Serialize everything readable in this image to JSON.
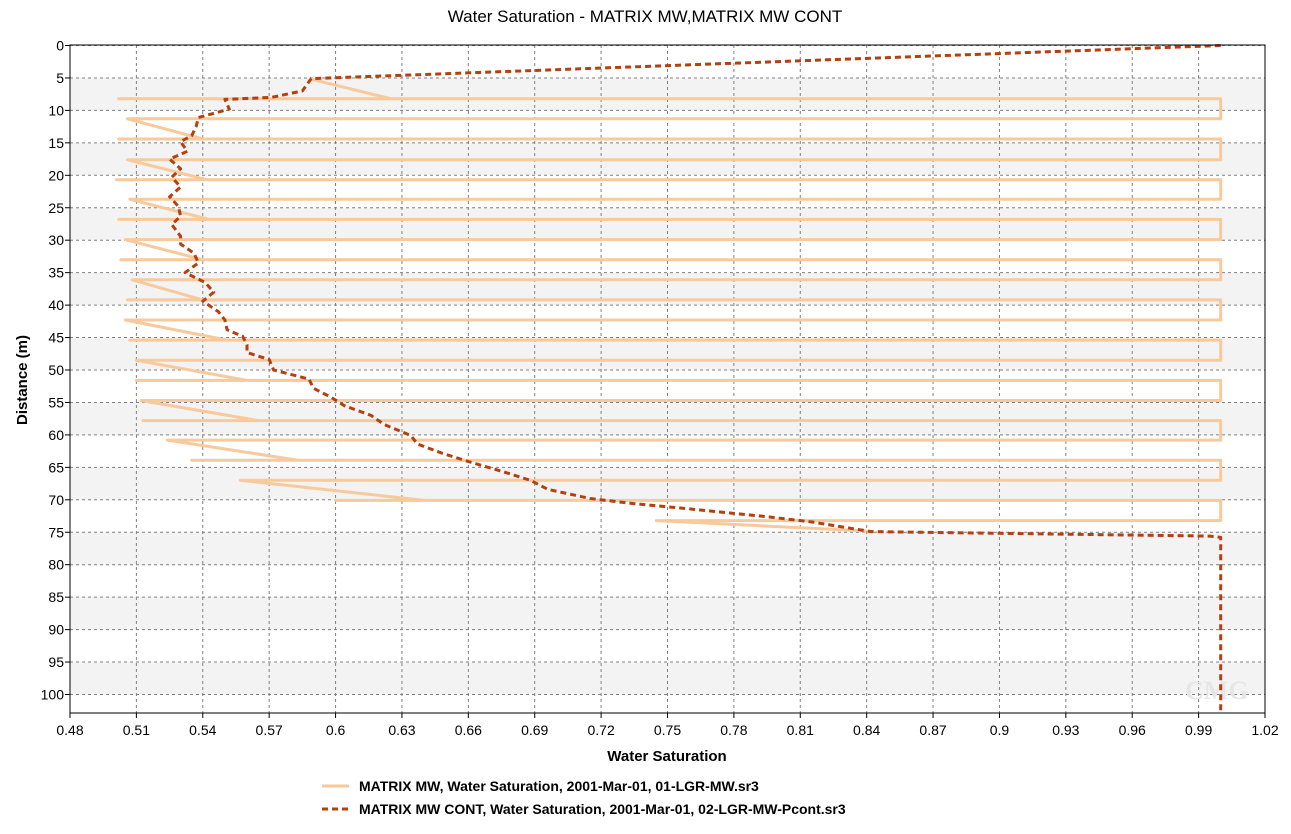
{
  "chart_data": {
    "type": "line",
    "title": "Water Saturation - MATRIX MW,MATRIX MW CONT",
    "xlabel": "Water Saturation",
    "ylabel": "Distance (m)",
    "xlim": [
      0.48,
      1.02
    ],
    "ylim": [
      0,
      103
    ],
    "y_inverted": true,
    "x_ticks": [
      "0.48",
      "0.51",
      "0.54",
      "0.57",
      "0.6",
      "0.63",
      "0.66",
      "0.69",
      "0.72",
      "0.75",
      "0.78",
      "0.81",
      "0.84",
      "0.87",
      "0.9",
      "0.93",
      "0.96",
      "0.99",
      "1.02"
    ],
    "y_ticks": [
      "0",
      "5",
      "10",
      "15",
      "20",
      "25",
      "30",
      "35",
      "40",
      "45",
      "50",
      "55",
      "60",
      "65",
      "70",
      "75",
      "80",
      "85",
      "90",
      "95",
      "100"
    ],
    "grid": true,
    "legend_position": "bottom",
    "watermark": "CMG",
    "colors": {
      "series1": "#f8c99a",
      "series2": "#b5400f",
      "band": "#f3f3f3",
      "grid": "#808080"
    },
    "series": [
      {
        "name": "MATRIX MW, Water Saturation, 2001-Mar-01, 01-LGR-MW.sr3",
        "style": "solid",
        "points": [
          [
            0.589,
            5.2
          ],
          [
            0.625,
            8.2
          ],
          [
            0.502,
            8.2
          ],
          [
            1.0,
            8.2
          ],
          [
            1.0,
            11.3
          ],
          [
            0.506,
            11.3
          ],
          [
            0.54,
            14.4
          ],
          [
            0.502,
            14.4
          ],
          [
            1.0,
            14.4
          ],
          [
            1.0,
            17.6
          ],
          [
            0.506,
            17.6
          ],
          [
            0.542,
            20.7
          ],
          [
            0.501,
            20.7
          ],
          [
            1.0,
            20.7
          ],
          [
            1.0,
            23.7
          ],
          [
            0.507,
            23.7
          ],
          [
            0.543,
            26.8
          ],
          [
            0.502,
            26.8
          ],
          [
            1.0,
            26.8
          ],
          [
            1.0,
            29.9
          ],
          [
            0.505,
            29.9
          ],
          [
            0.54,
            33.0
          ],
          [
            0.503,
            33.0
          ],
          [
            1.0,
            33.0
          ],
          [
            1.0,
            36.1
          ],
          [
            0.508,
            36.1
          ],
          [
            0.54,
            39.2
          ],
          [
            0.506,
            39.2
          ],
          [
            1.0,
            39.2
          ],
          [
            1.0,
            42.3
          ],
          [
            0.505,
            42.3
          ],
          [
            0.551,
            45.4
          ],
          [
            0.507,
            45.4
          ],
          [
            1.0,
            45.4
          ],
          [
            1.0,
            48.5
          ],
          [
            0.51,
            48.5
          ],
          [
            0.56,
            51.6
          ],
          [
            0.51,
            51.6
          ],
          [
            1.0,
            51.6
          ],
          [
            1.0,
            54.7
          ],
          [
            0.512,
            54.7
          ],
          [
            0.565,
            57.8
          ],
          [
            0.513,
            57.8
          ],
          [
            1.0,
            57.8
          ],
          [
            1.0,
            60.8
          ],
          [
            0.524,
            60.8
          ],
          [
            0.583,
            63.9
          ],
          [
            0.535,
            63.9
          ],
          [
            1.0,
            63.9
          ],
          [
            1.0,
            67.0
          ],
          [
            0.557,
            67.0
          ],
          [
            0.64,
            70.1
          ],
          [
            0.6,
            70.1
          ],
          [
            1.0,
            70.1
          ],
          [
            1.0,
            73.2
          ],
          [
            0.745,
            73.2
          ],
          [
            0.84,
            74.8
          ]
        ]
      },
      {
        "name": "MATRIX MW CONT, Water Saturation, 2001-Mar-01, 02-LGR-MW-Pcont.sr3",
        "style": "dashed",
        "points": [
          [
            1.0,
            0.0
          ],
          [
            0.589,
            5.1
          ],
          [
            0.585,
            7.0
          ],
          [
            0.571,
            8.0
          ],
          [
            0.55,
            8.3
          ],
          [
            0.552,
            9.8
          ],
          [
            0.538,
            11.1
          ],
          [
            0.537,
            12.5
          ],
          [
            0.535,
            13.9
          ],
          [
            0.53,
            14.8
          ],
          [
            0.533,
            16.3
          ],
          [
            0.525,
            17.5
          ],
          [
            0.53,
            19.0
          ],
          [
            0.526,
            20.3
          ],
          [
            0.53,
            21.8
          ],
          [
            0.525,
            23.3
          ],
          [
            0.529,
            24.8
          ],
          [
            0.53,
            26.3
          ],
          [
            0.526,
            27.6
          ],
          [
            0.53,
            29.4
          ],
          [
            0.53,
            30.6
          ],
          [
            0.536,
            32.0
          ],
          [
            0.538,
            33.5
          ],
          [
            0.532,
            35.0
          ],
          [
            0.541,
            36.5
          ],
          [
            0.545,
            38.0
          ],
          [
            0.54,
            39.4
          ],
          [
            0.547,
            41.0
          ],
          [
            0.55,
            42.3
          ],
          [
            0.551,
            43.8
          ],
          [
            0.558,
            44.8
          ],
          [
            0.56,
            46.1
          ],
          [
            0.56,
            47.3
          ],
          [
            0.57,
            48.4
          ],
          [
            0.572,
            50.0
          ],
          [
            0.588,
            51.4
          ],
          [
            0.59,
            52.8
          ],
          [
            0.598,
            54.2
          ],
          [
            0.604,
            55.5
          ],
          [
            0.616,
            57.0
          ],
          [
            0.622,
            58.4
          ],
          [
            0.634,
            60.1
          ],
          [
            0.637,
            61.4
          ],
          [
            0.648,
            62.8
          ],
          [
            0.66,
            64.1
          ],
          [
            0.676,
            65.7
          ],
          [
            0.688,
            67.0
          ],
          [
            0.696,
            68.4
          ],
          [
            0.715,
            69.8
          ],
          [
            0.735,
            70.6
          ],
          [
            0.76,
            71.4
          ],
          [
            0.795,
            72.6
          ],
          [
            0.815,
            73.4
          ],
          [
            0.842,
            74.9
          ],
          [
            0.995,
            75.6
          ],
          [
            1.0,
            75.8
          ],
          [
            1.0,
            103.0
          ]
        ]
      }
    ]
  }
}
